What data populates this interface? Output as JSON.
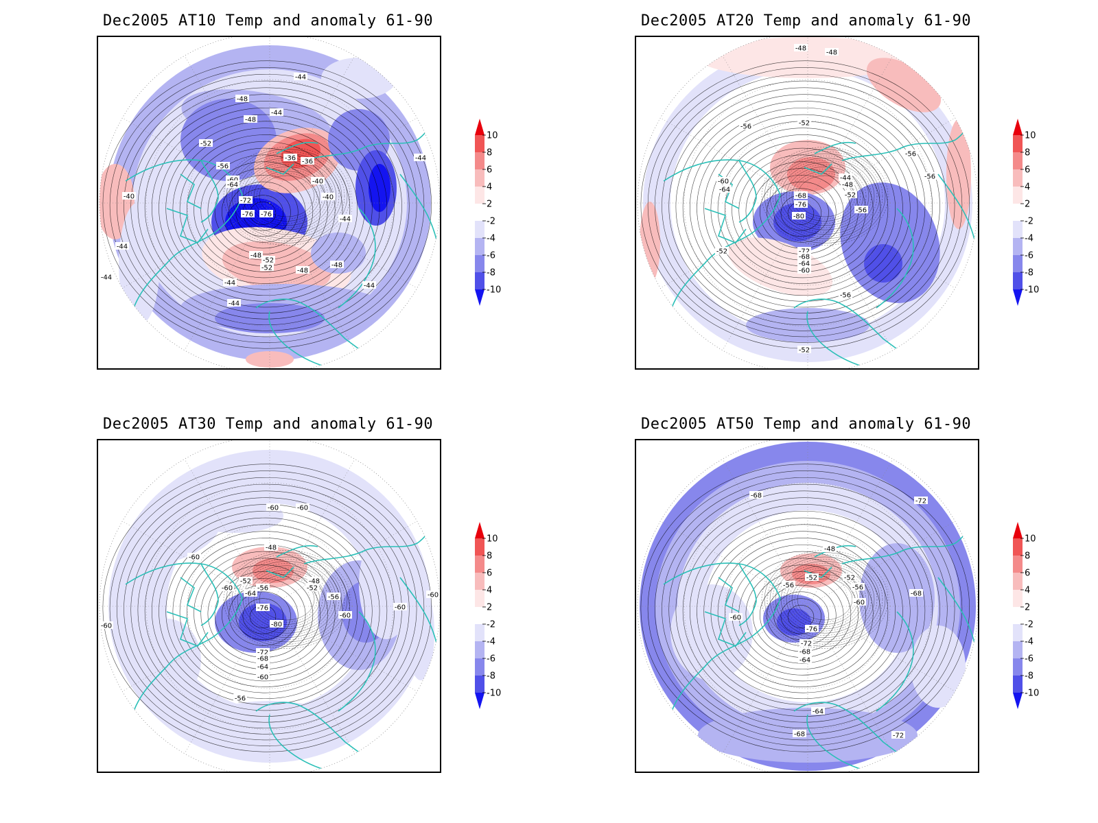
{
  "panels": [
    {
      "id": "at10",
      "title": "Dec2005 AT10 Temp and anomaly 61-90",
      "contour_labels": [
        "-44",
        "-48",
        "-48",
        "-44",
        "-52",
        "-56",
        "-60",
        "-64",
        "-72",
        "-76",
        "-76",
        "-36",
        "-36",
        "-40",
        "-40",
        "-44",
        "-48",
        "-48",
        "-52",
        "-52",
        "-48",
        "-44",
        "-44",
        "-44",
        "-44",
        "-44",
        "-40",
        "-44"
      ],
      "anomaly_pattern": "at10"
    },
    {
      "id": "at20",
      "title": "Dec2005 AT20 Temp and anomaly 61-90",
      "contour_labels": [
        "-48",
        "-48",
        "-52",
        "-56",
        "-56",
        "-56",
        "-60",
        "-64",
        "-68",
        "-76",
        "-80",
        "-44",
        "-48",
        "-52",
        "-56",
        "-72",
        "-68",
        "-64",
        "-60",
        "-56",
        "-52",
        "-52"
      ],
      "anomaly_pattern": "at20"
    },
    {
      "id": "at30",
      "title": "Dec2005 AT30 Temp and anomaly 61-90",
      "contour_labels": [
        "-60",
        "-60",
        "-60",
        "-48",
        "-60",
        "-60",
        "-52",
        "-56",
        "-64",
        "-48",
        "-52",
        "-56",
        "-76",
        "-80",
        "-72",
        "-68",
        "-64",
        "-60",
        "-60",
        "-60",
        "-56",
        "-60"
      ],
      "anomaly_pattern": "at30"
    },
    {
      "id": "at50",
      "title": "Dec2005 AT50 Temp and anomaly 61-90",
      "contour_labels": [
        "-68",
        "-48",
        "-72",
        "-52",
        "-56",
        "-52",
        "-56",
        "-60",
        "-60",
        "-68",
        "-76",
        "-72",
        "-68",
        "-64",
        "-64",
        "-68",
        "-72"
      ],
      "anomaly_pattern": "at50"
    }
  ],
  "colorbar": {
    "labels": [
      "10",
      "8",
      "6",
      "4",
      "2",
      "-2",
      "-4",
      "-6",
      "-8",
      "-10"
    ],
    "colors": [
      "#e8000c",
      "#f05555",
      "#f48a8a",
      "#f8bcbc",
      "#fde6e6",
      "#ffffff",
      "#e2e2fa",
      "#b4b4f2",
      "#8787ec",
      "#5050e8",
      "#1414f0"
    ]
  },
  "style": {
    "coast_color": "#2abfb7",
    "contour_color": "#000000",
    "grid_color": "#888888"
  }
}
